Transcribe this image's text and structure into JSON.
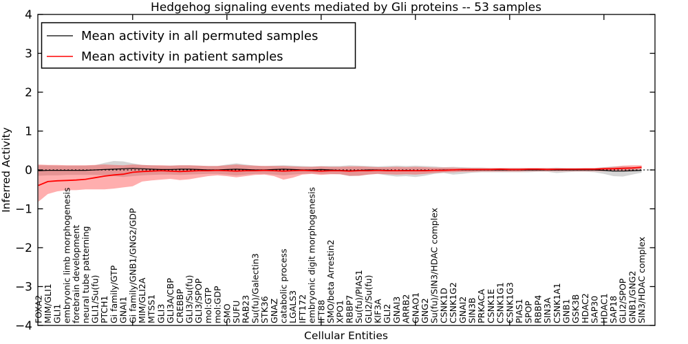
{
  "chart_data": {
    "type": "line",
    "title": "Hedgehog signaling events mediated by Gli proteins -- 53 samples",
    "xlabel": "Cellular Entities",
    "ylabel": "Inferred Activity",
    "ylim": [
      -4,
      4
    ],
    "yticks": [
      -4,
      -3,
      -2,
      -1,
      0,
      1,
      2,
      3,
      4
    ],
    "grid": false,
    "legend_position": "upper left",
    "zero_line": {
      "y": 0,
      "style": "dotted",
      "color": "#000000"
    },
    "top_tick_indices": [
      10,
      20,
      30,
      40,
      50,
      60
    ],
    "categories": [
      "FOXA2",
      "MIM/GLI1",
      "GLI1",
      "embryonic limb morphogenesis",
      "forebrain development",
      "neural tube patterning",
      "GLI1/Su(fu)",
      "PTCH1",
      "Gi family/GTP",
      "GNAI1",
      "Gi family/GNB1/GNG2/GDP",
      "MIM/GLI2A",
      "MTSS1",
      "GLI3",
      "GLI3A/CBP",
      "CREBBP",
      "GLI3/Su(fu)",
      "GLI3/SPOP",
      "mol:GTP",
      "mol:GDP",
      "SMO",
      "SUFU",
      "RAB23",
      "Su(fu)/Galectin3",
      "STK36",
      "GNAZ",
      "catabolic process",
      "LGALS3",
      "IFT172",
      "embryonic digit morphogenesis",
      "IFT88",
      "SMO/beta Arrestin2",
      "XPO1",
      "RBBP7",
      "Su(fu)/PIAS1",
      "GLI2/Su(fu)",
      "KIF3A",
      "GLI2",
      "GNAI3",
      "ARRB2",
      "GNAO1",
      "GNG2",
      "Su(fu)/SIN3/HDAC complex",
      "CSNK1D",
      "CSNK1G2",
      "GNAI2",
      "SIN3B",
      "PRKACA",
      "CSNK1E",
      "CSNK1G1",
      "CSNK1G3",
      "PIAS1",
      "SPOP",
      "RBBP4",
      "SIN3A",
      "CSNK1A1",
      "GNB1",
      "GSK3B",
      "HDAC2",
      "SAP30",
      "HDAC1",
      "SAP18",
      "GLI2/SPOP",
      "GNB1/GNG2",
      "SIN3/HDAC complex"
    ],
    "series": [
      {
        "name": "Mean activity in all permuted samples",
        "color": "#000000",
        "width": 1.2,
        "values": [
          -0.02,
          -0.01,
          -0.01,
          -0.01,
          -0.01,
          -0.01,
          0.0,
          0.01,
          0.02,
          0.03,
          0.04,
          0.03,
          0.02,
          0.01,
          0.01,
          0.02,
          0.02,
          0.01,
          0.0,
          0.0,
          0.01,
          0.02,
          0.01,
          0.0,
          0.0,
          0.01,
          0.02,
          0.01,
          0.0,
          0.0,
          0.01,
          0.0,
          -0.01,
          -0.02,
          -0.01,
          0.0,
          0.0,
          -0.01,
          -0.02,
          -0.01,
          -0.02,
          -0.01,
          -0.01,
          0.0,
          0.0,
          0.0,
          0.0,
          0.0,
          0.0,
          0.0,
          0.0,
          0.0,
          0.0,
          0.0,
          0.0,
          0.0,
          0.0,
          0.0,
          0.0,
          0.0,
          -0.01,
          -0.03,
          -0.03,
          -0.02,
          -0.01
        ]
      },
      {
        "name": "Mean activity in patient samples",
        "color": "#ff0000",
        "width": 1.8,
        "values": [
          -0.4,
          -0.3,
          -0.28,
          -0.27,
          -0.26,
          -0.24,
          -0.2,
          -0.16,
          -0.13,
          -0.11,
          -0.06,
          -0.04,
          -0.03,
          -0.02,
          -0.03,
          -0.04,
          -0.03,
          -0.02,
          -0.02,
          -0.01,
          -0.02,
          -0.03,
          -0.02,
          -0.02,
          -0.01,
          -0.02,
          -0.03,
          -0.02,
          -0.01,
          -0.02,
          -0.03,
          -0.02,
          -0.02,
          -0.03,
          -0.02,
          -0.02,
          -0.01,
          -0.02,
          -0.02,
          -0.02,
          -0.02,
          -0.02,
          -0.01,
          -0.01,
          0.0,
          0.01,
          0.01,
          0.01,
          0.01,
          0.02,
          0.01,
          0.01,
          0.02,
          0.02,
          0.01,
          0.02,
          0.02,
          0.02,
          0.02,
          0.02,
          0.03,
          0.03,
          0.04,
          0.05,
          0.07
        ]
      }
    ],
    "bands": [
      {
        "name": "permuted samples std band",
        "color": "#888888",
        "opacity": 0.35,
        "low": [
          -0.15,
          -0.14,
          -0.14,
          -0.13,
          -0.13,
          -0.13,
          -0.13,
          -0.14,
          -0.16,
          -0.18,
          -0.16,
          -0.14,
          -0.13,
          -0.12,
          -0.12,
          -0.13,
          -0.12,
          -0.11,
          -0.1,
          -0.1,
          -0.12,
          -0.14,
          -0.12,
          -0.1,
          -0.1,
          -0.12,
          -0.14,
          -0.12,
          -0.1,
          -0.09,
          -0.1,
          -0.1,
          -0.11,
          -0.16,
          -0.15,
          -0.12,
          -0.1,
          -0.14,
          -0.17,
          -0.16,
          -0.18,
          -0.15,
          -0.1,
          -0.08,
          -0.12,
          -0.1,
          -0.07,
          -0.06,
          -0.06,
          -0.06,
          -0.06,
          -0.06,
          -0.06,
          -0.05,
          -0.05,
          -0.08,
          -0.06,
          -0.05,
          -0.05,
          -0.06,
          -0.1,
          -0.16,
          -0.17,
          -0.12,
          -0.07
        ],
        "high": [
          0.12,
          0.12,
          0.11,
          0.11,
          0.11,
          0.11,
          0.12,
          0.18,
          0.23,
          0.22,
          0.17,
          0.13,
          0.12,
          0.11,
          0.11,
          0.12,
          0.12,
          0.11,
          0.1,
          0.1,
          0.14,
          0.17,
          0.14,
          0.11,
          0.1,
          0.11,
          0.12,
          0.11,
          0.1,
          0.09,
          0.1,
          0.1,
          0.1,
          0.12,
          0.11,
          0.1,
          0.09,
          0.1,
          0.11,
          0.1,
          0.11,
          0.1,
          0.09,
          0.07,
          0.08,
          0.07,
          0.06,
          0.06,
          0.05,
          0.05,
          0.05,
          0.05,
          0.05,
          0.05,
          0.05,
          0.06,
          0.05,
          0.05,
          0.05,
          0.05,
          0.07,
          0.09,
          0.09,
          0.08,
          0.06
        ]
      },
      {
        "name": "patient samples std band",
        "color": "#ff2a2a",
        "opacity": 0.38,
        "low": [
          -0.82,
          -0.62,
          -0.55,
          -0.52,
          -0.52,
          -0.5,
          -0.5,
          -0.5,
          -0.48,
          -0.45,
          -0.42,
          -0.3,
          -0.27,
          -0.25,
          -0.23,
          -0.26,
          -0.24,
          -0.2,
          -0.16,
          -0.14,
          -0.16,
          -0.19,
          -0.16,
          -0.13,
          -0.12,
          -0.16,
          -0.25,
          -0.2,
          -0.12,
          -0.1,
          -0.13,
          -0.11,
          -0.11,
          -0.15,
          -0.15,
          -0.12,
          -0.1,
          -0.11,
          -0.12,
          -0.11,
          -0.12,
          -0.1,
          -0.08,
          -0.06,
          -0.06,
          -0.05,
          -0.05,
          -0.04,
          -0.04,
          -0.04,
          -0.04,
          -0.04,
          -0.03,
          -0.03,
          -0.03,
          -0.03,
          -0.03,
          -0.03,
          -0.03,
          -0.03,
          -0.03,
          -0.02,
          -0.02,
          -0.01,
          0.02
        ],
        "high": [
          0.14,
          0.13,
          0.13,
          0.12,
          0.12,
          0.12,
          0.13,
          0.14,
          0.13,
          0.12,
          0.14,
          0.13,
          0.12,
          0.12,
          0.11,
          0.12,
          0.12,
          0.11,
          0.1,
          0.1,
          0.12,
          0.14,
          0.12,
          0.11,
          0.1,
          0.1,
          0.1,
          0.09,
          0.08,
          0.08,
          0.09,
          0.08,
          0.08,
          0.09,
          0.09,
          0.08,
          0.07,
          0.07,
          0.08,
          0.07,
          0.08,
          0.07,
          0.06,
          0.06,
          0.06,
          0.05,
          0.05,
          0.05,
          0.05,
          0.05,
          0.05,
          0.05,
          0.05,
          0.05,
          0.05,
          0.04,
          0.04,
          0.04,
          0.05,
          0.05,
          0.06,
          0.08,
          0.11,
          0.12,
          0.12
        ]
      }
    ]
  }
}
